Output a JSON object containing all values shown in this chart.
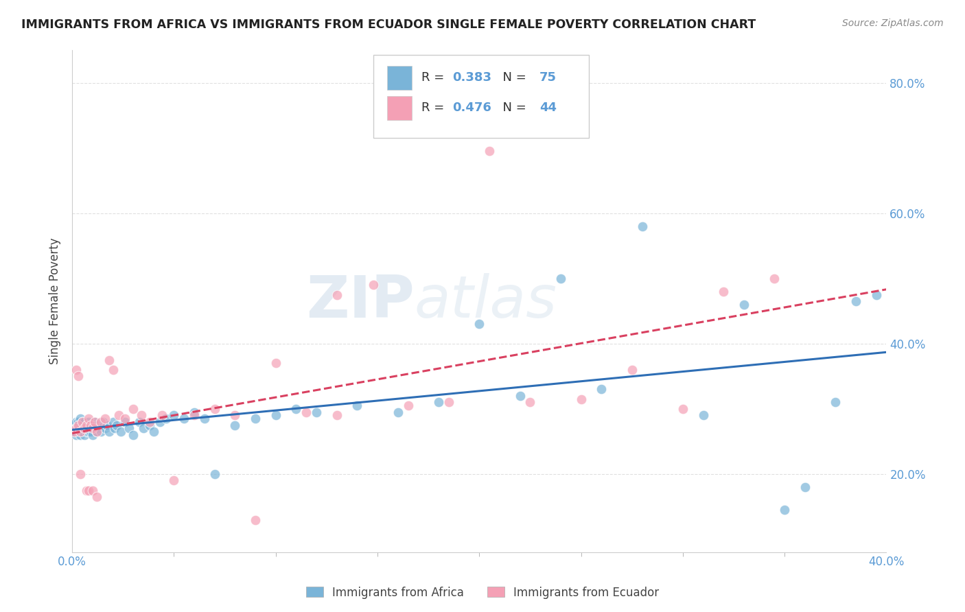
{
  "title": "IMMIGRANTS FROM AFRICA VS IMMIGRANTS FROM ECUADOR SINGLE FEMALE POVERTY CORRELATION CHART",
  "source": "Source: ZipAtlas.com",
  "ylabel": "Single Female Poverty",
  "legend_bottom": [
    "Immigrants from Africa",
    "Immigrants from Ecuador"
  ],
  "r_africa": 0.383,
  "n_africa": 75,
  "r_ecuador": 0.476,
  "n_ecuador": 44,
  "color_africa": "#7ab4d8",
  "color_ecuador": "#f4a0b5",
  "color_trendline_africa": "#2e6eb5",
  "color_trendline_ecuador": "#d94060",
  "color_axis_labels": "#5b9bd5",
  "xlim": [
    0.0,
    0.4
  ],
  "ylim": [
    0.08,
    0.85
  ],
  "africa_x": [
    0.001,
    0.001,
    0.002,
    0.002,
    0.002,
    0.003,
    0.003,
    0.003,
    0.004,
    0.004,
    0.004,
    0.005,
    0.005,
    0.005,
    0.006,
    0.006,
    0.006,
    0.007,
    0.007,
    0.007,
    0.008,
    0.008,
    0.008,
    0.009,
    0.009,
    0.01,
    0.01,
    0.011,
    0.011,
    0.012,
    0.012,
    0.013,
    0.014,
    0.015,
    0.016,
    0.017,
    0.018,
    0.02,
    0.021,
    0.022,
    0.024,
    0.026,
    0.028,
    0.03,
    0.033,
    0.035,
    0.038,
    0.04,
    0.043,
    0.046,
    0.05,
    0.055,
    0.06,
    0.065,
    0.07,
    0.08,
    0.09,
    0.1,
    0.11,
    0.12,
    0.14,
    0.16,
    0.18,
    0.2,
    0.22,
    0.24,
    0.26,
    0.28,
    0.31,
    0.33,
    0.35,
    0.36,
    0.375,
    0.385,
    0.395
  ],
  "africa_y": [
    0.265,
    0.275,
    0.27,
    0.28,
    0.26,
    0.275,
    0.265,
    0.28,
    0.27,
    0.285,
    0.26,
    0.275,
    0.265,
    0.28,
    0.27,
    0.26,
    0.28,
    0.275,
    0.265,
    0.27,
    0.265,
    0.275,
    0.28,
    0.27,
    0.265,
    0.275,
    0.26,
    0.27,
    0.28,
    0.275,
    0.265,
    0.27,
    0.265,
    0.28,
    0.27,
    0.275,
    0.265,
    0.28,
    0.27,
    0.275,
    0.265,
    0.28,
    0.27,
    0.26,
    0.28,
    0.27,
    0.275,
    0.265,
    0.28,
    0.285,
    0.29,
    0.285,
    0.295,
    0.285,
    0.2,
    0.275,
    0.285,
    0.29,
    0.3,
    0.295,
    0.305,
    0.295,
    0.31,
    0.43,
    0.32,
    0.5,
    0.33,
    0.58,
    0.29,
    0.46,
    0.145,
    0.18,
    0.31,
    0.465,
    0.475
  ],
  "ecuador_x": [
    0.001,
    0.002,
    0.003,
    0.004,
    0.005,
    0.006,
    0.007,
    0.008,
    0.009,
    0.01,
    0.011,
    0.012,
    0.014,
    0.016,
    0.018,
    0.02,
    0.023,
    0.026,
    0.03,
    0.034,
    0.038,
    0.044,
    0.05,
    0.06,
    0.07,
    0.08,
    0.09,
    0.1,
    0.115,
    0.13,
    0.148,
    0.165,
    0.185,
    0.205,
    0.225,
    0.25,
    0.275,
    0.3,
    0.32,
    0.345
  ],
  "ecuador_y": [
    0.265,
    0.27,
    0.275,
    0.265,
    0.28,
    0.27,
    0.275,
    0.285,
    0.275,
    0.27,
    0.28,
    0.265,
    0.28,
    0.285,
    0.375,
    0.36,
    0.29,
    0.285,
    0.3,
    0.29,
    0.28,
    0.29,
    0.19,
    0.29,
    0.3,
    0.29,
    0.13,
    0.37,
    0.295,
    0.29,
    0.49,
    0.305,
    0.31,
    0.695,
    0.31,
    0.315,
    0.36,
    0.3,
    0.48,
    0.5
  ],
  "ecuador_x_extra": [
    0.002,
    0.003,
    0.004,
    0.007,
    0.008,
    0.01,
    0.012,
    0.13
  ],
  "ecuador_y_extra": [
    0.36,
    0.35,
    0.2,
    0.175,
    0.175,
    0.175,
    0.165,
    0.475
  ],
  "background_color": "#ffffff",
  "grid_color": "#e0e0e0",
  "watermark_text": "ZIPatlas",
  "xtick_vals": [
    0.0,
    0.4
  ],
  "xtick_labels": [
    "0.0%",
    "40.0%"
  ],
  "xtick_minor_vals": [
    0.05,
    0.1,
    0.15,
    0.2,
    0.25,
    0.3,
    0.35
  ],
  "ytick_vals": [
    0.2,
    0.4,
    0.6,
    0.8
  ],
  "ytick_labels": [
    "20.0%",
    "40.0%",
    "60.0%",
    "80.0%"
  ]
}
